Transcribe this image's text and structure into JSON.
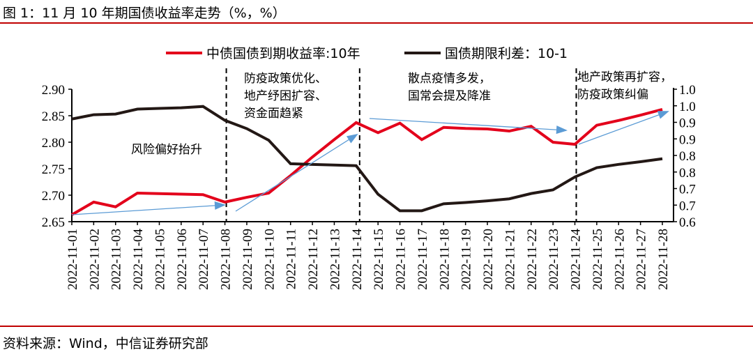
{
  "title": "图 1：11 月 10 年期国债收益率走势（%，%）",
  "source": "资料来源：Wind，中信证券研究部",
  "colors": {
    "accent": "#c00000",
    "yield_line": "#e3001b",
    "spread_line": "#231815",
    "arrow": "#5b9bd5"
  },
  "chart_data": {
    "type": "line",
    "categories": [
      "2022-11-01",
      "2022-11-02",
      "2022-11-03",
      "2022-11-04",
      "2022-11-05",
      "2022-11-06",
      "2022-11-07",
      "2022-11-08",
      "2022-11-09",
      "2022-11-10",
      "2022-11-11",
      "2022-11-12",
      "2022-11-13",
      "2022-11-14",
      "2022-11-15",
      "2022-11-16",
      "2022-11-17",
      "2022-11-18",
      "2022-11-19",
      "2022-11-20",
      "2022-11-21",
      "2022-11-22",
      "2022-11-23",
      "2022-11-24",
      "2022-11-25",
      "2022-11-26",
      "2022-11-27",
      "2022-11-28"
    ],
    "series": [
      {
        "name": "中债国债到期收益率:10年",
        "axis": "left",
        "values": [
          2.663,
          2.687,
          2.678,
          2.704,
          2.703,
          2.702,
          2.701,
          2.687,
          2.696,
          2.704,
          2.737,
          2.772,
          2.805,
          2.837,
          2.818,
          2.836,
          2.805,
          2.828,
          2.826,
          2.825,
          2.821,
          2.83,
          2.8,
          2.796,
          2.832,
          2.841,
          2.851,
          2.862
        ]
      },
      {
        "name": "国债期限利差：10-1",
        "axis": "right",
        "values": [
          0.91,
          0.923,
          0.925,
          0.94,
          0.942,
          0.944,
          0.948,
          0.906,
          0.881,
          0.846,
          0.775,
          0.773,
          0.771,
          0.769,
          0.683,
          0.633,
          0.633,
          0.654,
          0.658,
          0.663,
          0.669,
          0.685,
          0.696,
          0.735,
          0.763,
          0.773,
          0.781,
          0.79
        ]
      }
    ],
    "y_left": {
      "range": [
        2.65,
        2.9
      ],
      "ticks": [
        "2.90",
        "2.85",
        "2.80",
        "2.75",
        "2.70",
        "2.65"
      ]
    },
    "y_right": {
      "range": [
        0.6,
        1.0
      ],
      "ticks": [
        "1.0",
        "1.0",
        "0.9",
        "0.9",
        "0.8",
        "0.8",
        "0.7",
        "0.7",
        "0.6"
      ]
    },
    "grid": false,
    "legend": "top",
    "dividers": [
      "2022-11-08",
      "2022-11-14",
      "2022-11-24"
    ],
    "annotations": [
      {
        "lines": [
          "风险偏好抬升"
        ]
      },
      {
        "lines": [
          "防疫政策优化、",
          "地产纾困扩容、",
          "资金面趋紧"
        ]
      },
      {
        "lines": [
          "散点疫情多发，",
          "国常会提及降准"
        ]
      },
      {
        "lines": [
          "地产政策再扩容，",
          "防疫政策纠偏"
        ]
      }
    ]
  }
}
